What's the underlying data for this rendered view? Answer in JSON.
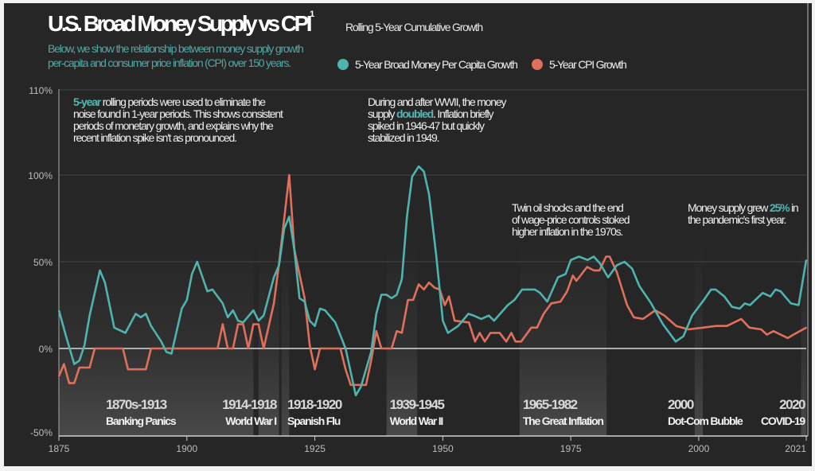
{
  "header": {
    "title": "U.S. Broad Money Supply vs CPI",
    "title_footnote": "1",
    "subtitle": "Rolling 5-Year Cumulative Growth",
    "description_line1": "Below, we show the relationship between money supply growth",
    "description_line2": "per-capita and consumer price inflation (CPI) over 150 years."
  },
  "annotations": {
    "rolling": {
      "highlight": "5-year",
      "line1_rest": " rolling periods were used to eliminate the",
      "line2": "noise found in 1-year periods. This shows consistent",
      "line3": "periods of monetary growth, and explains why the",
      "line4": "recent inflation spike isn't as pronounced."
    },
    "wwii": {
      "line1": "During and after WWII, the money",
      "line2_pre": "supply ",
      "line2_hl": "doubled",
      "line2_post": ". Inflation briefly",
      "line3": "spiked in 1946-47 but quickly",
      "line4": "stabilized in 1949."
    },
    "oil": {
      "line1": "Twin oil shocks and the end",
      "line2": "of wage-price controls stoked",
      "line3": "higher inflation in the 1970s."
    },
    "pandemic": {
      "line1_pre": "Money supply grew ",
      "line1_hl": "25%",
      "line1_post": " in",
      "line2": "the pandemic's first year."
    }
  },
  "colors": {
    "money": "#4fb3ae",
    "cpi": "#e0705c",
    "background": "#262626",
    "highlight": "#4fb8b5"
  },
  "chart_data": {
    "type": "line",
    "title": "U.S. Broad Money Supply vs CPI",
    "xlabel": "",
    "ylabel": "",
    "xlim": [
      1875,
      2021
    ],
    "ylim": [
      -50,
      110
    ],
    "x_ticks": [
      "1875",
      "1900",
      "1925",
      "1950",
      "1975",
      "2000",
      "2021"
    ],
    "y_ticks": [
      "110%",
      "100%",
      "50%",
      "0%",
      "-50%"
    ],
    "grid": "horizontal",
    "legend": "top-right",
    "series": [
      {
        "name": "5-Year Broad Money Per Capita Growth",
        "color": "#4fb3ae",
        "points": [
          [
            1875,
            22
          ],
          [
            1876.4,
            7
          ],
          [
            1878,
            -9
          ],
          [
            1879,
            -7
          ],
          [
            1880,
            2
          ],
          [
            1881,
            19
          ],
          [
            1883,
            45
          ],
          [
            1884,
            38
          ],
          [
            1885.8,
            12
          ],
          [
            1888,
            9
          ],
          [
            1890,
            20
          ],
          [
            1891,
            18
          ],
          [
            1892,
            20
          ],
          [
            1893,
            13
          ],
          [
            1895,
            4
          ],
          [
            1896,
            -2
          ],
          [
            1897,
            -3
          ],
          [
            1899,
            23
          ],
          [
            1900,
            28
          ],
          [
            1901,
            43
          ],
          [
            1902,
            50
          ],
          [
            1904,
            33
          ],
          [
            1905,
            34
          ],
          [
            1907,
            26
          ],
          [
            1908,
            18
          ],
          [
            1909,
            22
          ],
          [
            1910,
            16
          ],
          [
            1911,
            15
          ],
          [
            1913,
            22
          ],
          [
            1914,
            16
          ],
          [
            1915,
            19
          ],
          [
            1917,
            41
          ],
          [
            1918,
            48
          ],
          [
            1919,
            69
          ],
          [
            1920,
            76
          ],
          [
            1921,
            57
          ],
          [
            1922,
            29
          ],
          [
            1923,
            27
          ],
          [
            1924,
            16
          ],
          [
            1925,
            13
          ],
          [
            1926,
            23
          ],
          [
            1927,
            22
          ],
          [
            1929,
            15
          ],
          [
            1931,
            0
          ],
          [
            1933,
            -27
          ],
          [
            1934,
            -22
          ],
          [
            1936,
            -2
          ],
          [
            1937,
            20
          ],
          [
            1938,
            31
          ],
          [
            1939,
            31
          ],
          [
            1940,
            29
          ],
          [
            1941,
            31
          ],
          [
            1942,
            40
          ],
          [
            1943,
            76
          ],
          [
            1944,
            99
          ],
          [
            1945.3,
            105
          ],
          [
            1946.3,
            102
          ],
          [
            1947.3,
            89
          ],
          [
            1948.7,
            54
          ],
          [
            1950,
            16
          ],
          [
            1951,
            9
          ],
          [
            1953,
            13
          ],
          [
            1955,
            20
          ],
          [
            1956,
            19
          ],
          [
            1957.5,
            17
          ],
          [
            1959,
            19
          ],
          [
            1960,
            16
          ],
          [
            1962.7,
            25
          ],
          [
            1964,
            28
          ],
          [
            1965.5,
            34
          ],
          [
            1968,
            34
          ],
          [
            1969,
            32
          ],
          [
            1970.4,
            27
          ],
          [
            1972.5,
            41
          ],
          [
            1974,
            43
          ],
          [
            1975,
            51
          ],
          [
            1976.6,
            53
          ],
          [
            1978.3,
            51
          ],
          [
            1979.5,
            53
          ],
          [
            1980.7,
            49
          ],
          [
            1982.3,
            41
          ],
          [
            1984,
            48
          ],
          [
            1985.5,
            50
          ],
          [
            1987,
            46
          ],
          [
            1988.4,
            36
          ],
          [
            1990.7,
            26
          ],
          [
            1993,
            14
          ],
          [
            1995.5,
            4
          ],
          [
            1997,
            7
          ],
          [
            1998.7,
            19
          ],
          [
            2001,
            28
          ],
          [
            2002.4,
            34
          ],
          [
            2003.3,
            34
          ],
          [
            2005,
            30
          ],
          [
            2006.5,
            24
          ],
          [
            2008,
            23
          ],
          [
            2009,
            26
          ],
          [
            2010,
            25
          ],
          [
            2012.5,
            32
          ],
          [
            2014,
            30
          ],
          [
            2015,
            34
          ],
          [
            2016,
            33
          ],
          [
            2018,
            26
          ],
          [
            2019.5,
            25
          ],
          [
            2021,
            51
          ]
        ]
      },
      {
        "name": "5-Year CPI Growth",
        "color": "#e0705c",
        "points": [
          [
            1875,
            -16
          ],
          [
            1876,
            -9
          ],
          [
            1877,
            -20
          ],
          [
            1878,
            -20
          ],
          [
            1879,
            -11
          ],
          [
            1881,
            -11
          ],
          [
            1882,
            0
          ],
          [
            1887.5,
            0
          ],
          [
            1888.5,
            -12
          ],
          [
            1892,
            -12
          ],
          [
            1893,
            0
          ],
          [
            1906,
            0
          ],
          [
            1907,
            14
          ],
          [
            1908,
            0
          ],
          [
            1909,
            0
          ],
          [
            1910,
            14
          ],
          [
            1911,
            14
          ],
          [
            1912,
            0
          ],
          [
            1913,
            14
          ],
          [
            1914,
            14
          ],
          [
            1915,
            0
          ],
          [
            1917,
            26
          ],
          [
            1918,
            49
          ],
          [
            1920,
            100
          ],
          [
            1921,
            57
          ],
          [
            1923,
            29
          ],
          [
            1924,
            2
          ],
          [
            1925,
            -12
          ],
          [
            1926,
            0
          ],
          [
            1930,
            0
          ],
          [
            1931,
            -12
          ],
          [
            1932,
            -21
          ],
          [
            1935,
            -21
          ],
          [
            1936,
            -7
          ],
          [
            1937,
            10
          ],
          [
            1938,
            0
          ],
          [
            1940,
            0
          ],
          [
            1941,
            10
          ],
          [
            1942,
            9
          ],
          [
            1943.2,
            28
          ],
          [
            1944.2,
            28
          ],
          [
            1945.3,
            37
          ],
          [
            1946.3,
            34
          ],
          [
            1947.3,
            38
          ],
          [
            1948.4,
            35
          ],
          [
            1949.4,
            34
          ],
          [
            1950.4,
            25
          ],
          [
            1951.2,
            30
          ],
          [
            1952.3,
            16
          ],
          [
            1955.1,
            15
          ],
          [
            1956.3,
            4
          ],
          [
            1957.2,
            9
          ],
          [
            1958.2,
            4
          ],
          [
            1959.3,
            9
          ],
          [
            1961.1,
            9
          ],
          [
            1962.4,
            4
          ],
          [
            1963.4,
            9
          ],
          [
            1964.2,
            4
          ],
          [
            1965.3,
            4
          ],
          [
            1967.3,
            12
          ],
          [
            1968.4,
            12
          ],
          [
            1969.7,
            20
          ],
          [
            1971.2,
            26
          ],
          [
            1973,
            27
          ],
          [
            1974.3,
            33
          ],
          [
            1975.4,
            42
          ],
          [
            1976.1,
            39
          ],
          [
            1978.2,
            47
          ],
          [
            1979.5,
            45
          ],
          [
            1980.6,
            45
          ],
          [
            1981.9,
            53
          ],
          [
            1982.6,
            53
          ],
          [
            1984,
            44
          ],
          [
            1986,
            25
          ],
          [
            1987.3,
            18
          ],
          [
            1989.1,
            17
          ],
          [
            1991.5,
            22
          ],
          [
            1993.3,
            19
          ],
          [
            1995.6,
            13
          ],
          [
            1998,
            11
          ],
          [
            2000.8,
            12
          ],
          [
            2003.4,
            13
          ],
          [
            2005.5,
            13
          ],
          [
            2008.3,
            17
          ],
          [
            2009.9,
            12
          ],
          [
            2012.2,
            11
          ],
          [
            2013.3,
            8
          ],
          [
            2014.6,
            10
          ],
          [
            2017.4,
            6
          ],
          [
            2018.5,
            8
          ],
          [
            2021,
            12
          ]
        ]
      }
    ],
    "events": [
      {
        "years": "1870s-1913",
        "name": "Banking Panics",
        "start": 1875,
        "end": 1913
      },
      {
        "years": "1914-1918",
        "name": "World War I",
        "start": 1914,
        "end": 1918
      },
      {
        "years": "1918-1920",
        "name": "Spanish Flu",
        "start": 1918.5,
        "end": 1920
      },
      {
        "years": "1939-1945",
        "name": "World War II",
        "start": 1939,
        "end": 1945
      },
      {
        "years": "1965-1982",
        "name": "The Great Inflation",
        "start": 1965,
        "end": 1982
      },
      {
        "years": "2000",
        "name": "Dot-Com Bubble",
        "start": 1999.2,
        "end": 2000.8
      },
      {
        "years": "2020",
        "name": "COVID-19",
        "start": 2020,
        "end": 2021
      }
    ]
  }
}
